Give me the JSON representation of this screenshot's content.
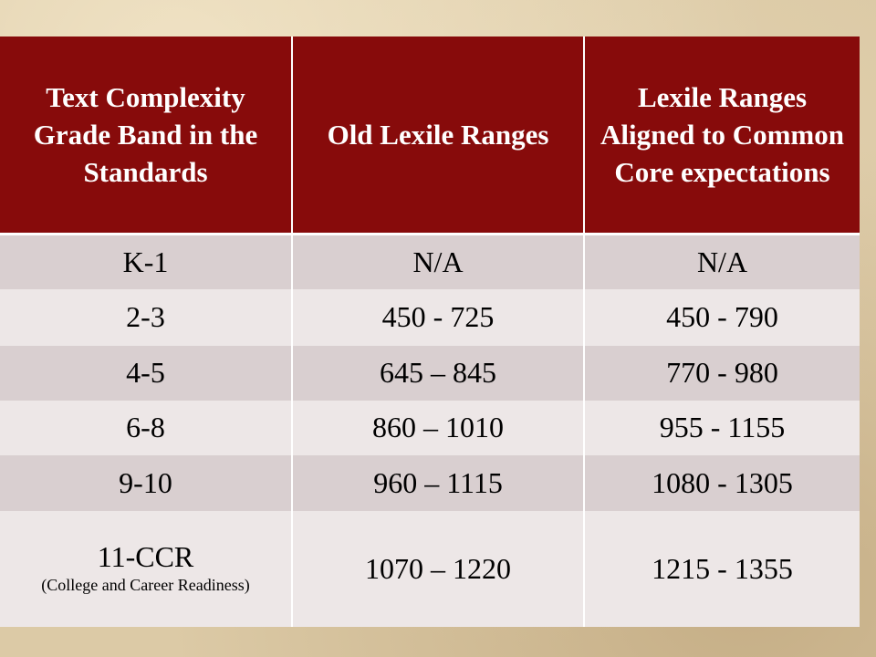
{
  "table": {
    "header": [
      "Text Complexity Grade Band in the Standards",
      "Old Lexile Ranges",
      "Lexile Ranges Aligned to Common Core expectations"
    ],
    "rows": [
      [
        "K-1",
        "N/A",
        "N/A"
      ],
      [
        "2-3",
        "450 - 725",
        "450 - 790"
      ],
      [
        "4-5",
        "645 – 845",
        "770 - 980"
      ],
      [
        "6-8",
        "860 – 1010",
        "955 - 1155"
      ],
      [
        "9-10",
        "960 – 1115",
        "1080 - 1305"
      ],
      [
        "11-CCR",
        "1070 – 1220",
        "1215 - 1355"
      ]
    ],
    "last_row_note": "(College and Career Readiness)"
  }
}
